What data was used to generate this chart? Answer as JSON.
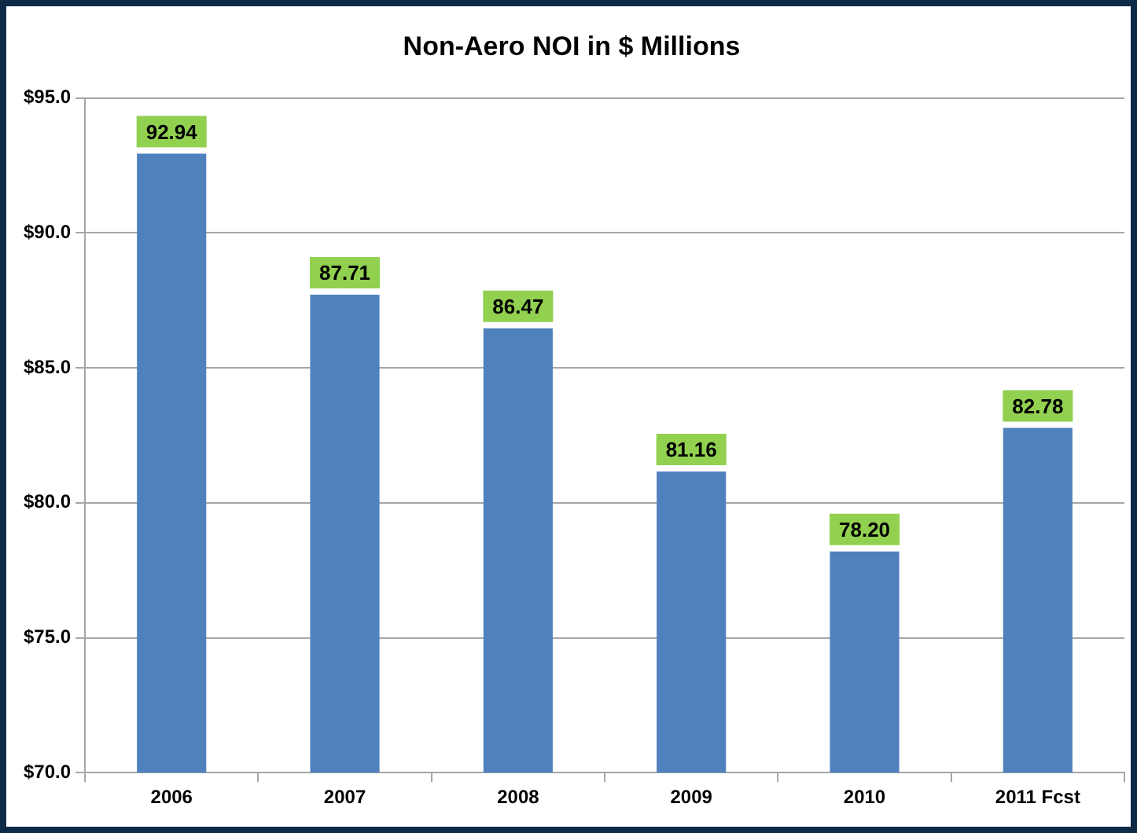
{
  "chart_data": {
    "type": "bar",
    "title": "Non-Aero NOI in $ Millions",
    "categories": [
      "2006",
      "2007",
      "2008",
      "2009",
      "2010",
      "2011 Fcst"
    ],
    "values": [
      92.94,
      87.71,
      86.47,
      81.16,
      78.2,
      82.78
    ],
    "value_labels": [
      "92.94",
      "87.71",
      "86.47",
      "81.16",
      "78.20",
      "82.78"
    ],
    "color": "#4f81bd",
    "ylim": [
      70,
      95
    ],
    "yticks": [
      {
        "value": 70,
        "label": "$70.0"
      },
      {
        "value": 75,
        "label": "$75.0"
      },
      {
        "value": 80,
        "label": "$80.0"
      },
      {
        "value": 85,
        "label": "$85.0"
      },
      {
        "value": 90,
        "label": "$90.0"
      },
      {
        "value": 95,
        "label": "$95.0"
      }
    ],
    "grid": "y",
    "legend": false
  }
}
